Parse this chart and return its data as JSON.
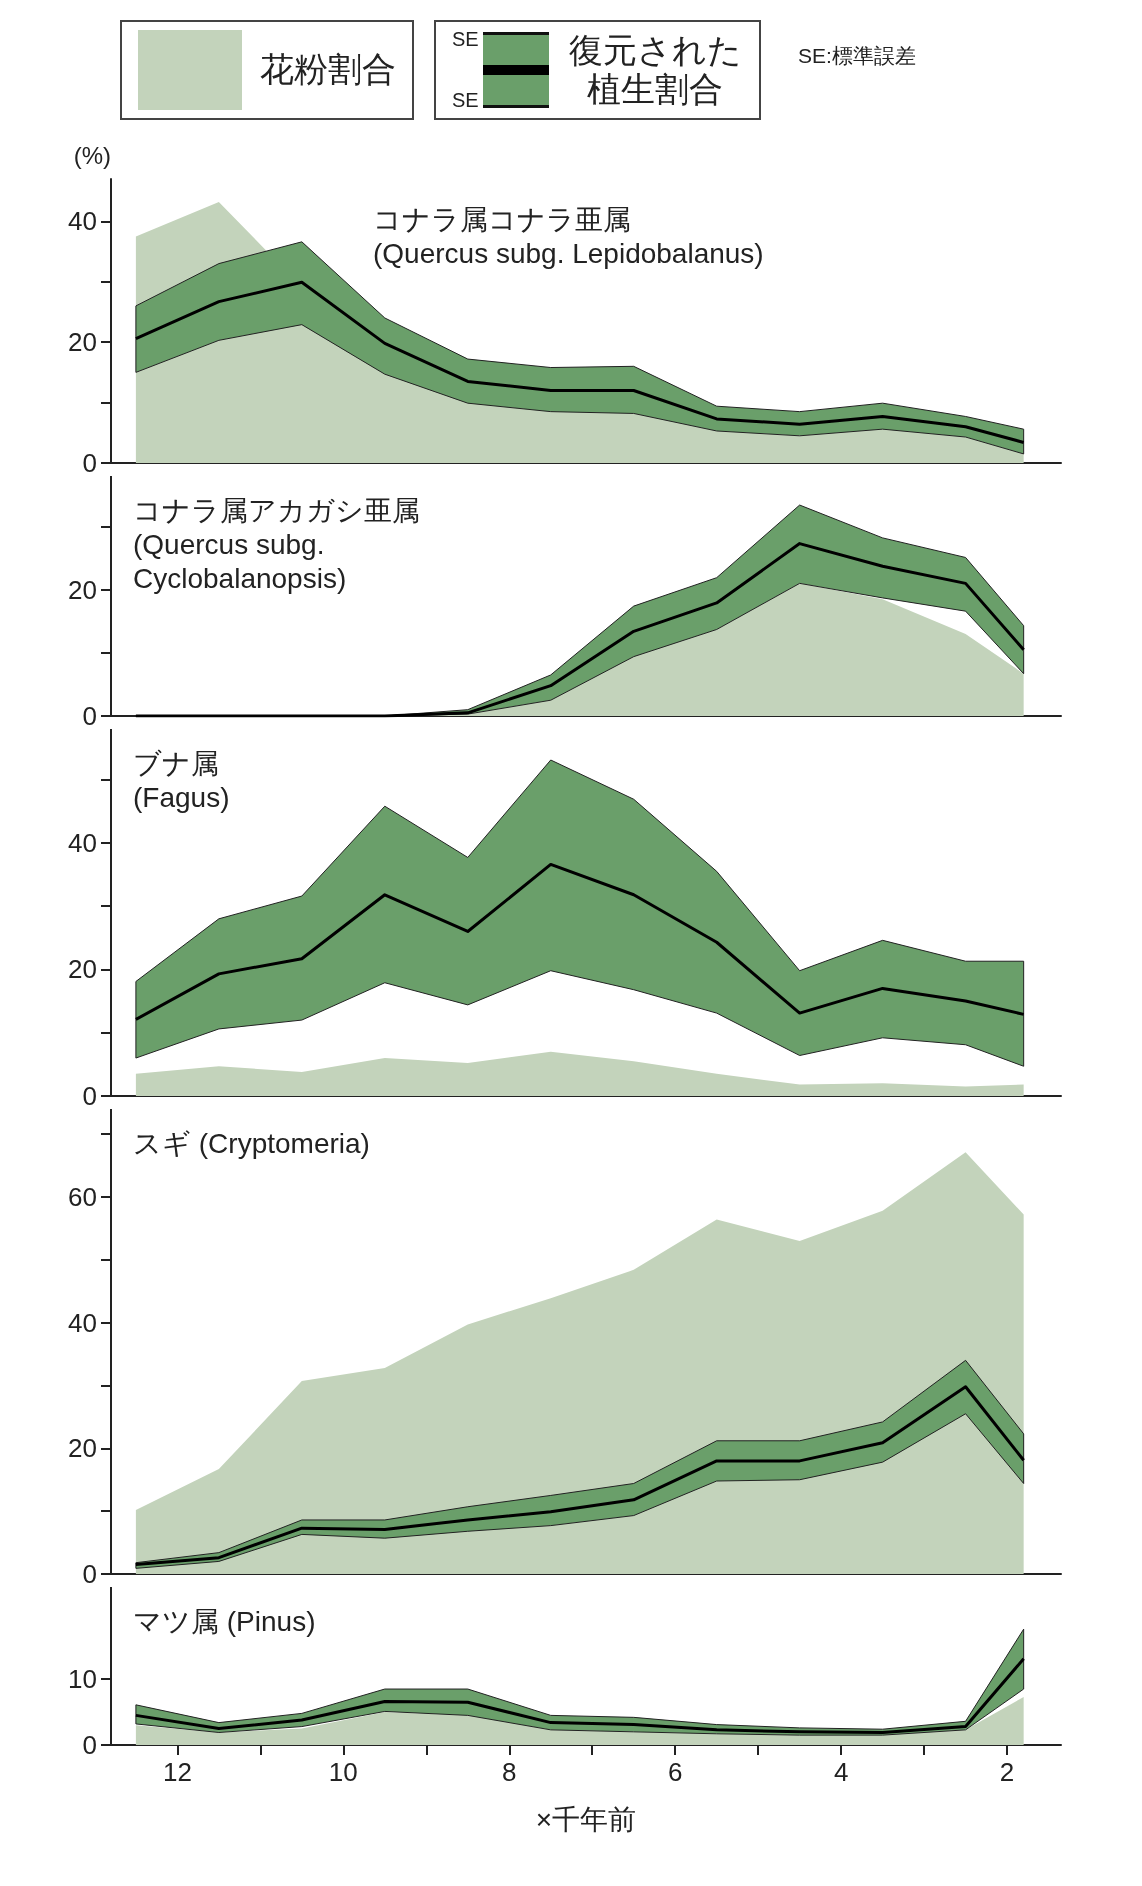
{
  "chart_data": [
    {
      "type": "area",
      "title": "コナラ属コナラ亜属\n(Quercus subg. Lepidobalanus)",
      "ylabel": "(%)",
      "legend": "top",
      "annotations": [
        "SE:標準誤差",
        "SE",
        "SE"
      ],
      "tick_labels": "y",
      "xlim": [
        12.8,
        1.35
      ],
      "ylim": [
        0,
        47
      ],
      "yticks": [
        0,
        {
          "value": 10,
          "label": null
        },
        20,
        {
          "value": 30,
          "label": null
        },
        40
      ],
      "x": [
        12.5,
        11.5,
        10.5,
        9.5,
        8.5,
        7.5,
        6.5,
        5.5,
        4.5,
        3.5,
        2.5,
        1.8
      ],
      "series": [
        {
          "name": "花粉割合",
          "color": "#c3d3bb",
          "values": [
            37.5,
            43.2,
            null,
            15,
            10,
            8.5,
            8.2,
            5.3,
            4.5,
            5.6,
            4.3,
            1.5
          ]
        },
        {
          "name": "復元された植生割合",
          "type": "line",
          "color": "#000000",
          "values": [
            20.6,
            26.7,
            29.9,
            19.8,
            13.5,
            12,
            12,
            7.3,
            6.4,
            7.7,
            6,
            3.4
          ],
          "lower": [
            15,
            20.3,
            22.9,
            14.7,
            9.9,
            8.5,
            8.2,
            5.3,
            4.5,
            5.6,
            4.3,
            1.5
          ],
          "upper": [
            26,
            33,
            36.6,
            24,
            17.2,
            15.8,
            16,
            9.4,
            8.5,
            9.9,
            7.7,
            5.6
          ]
        }
      ]
    },
    {
      "type": "area",
      "title": "コナラ属アカガシ亜属\n(Quercus subg.\nCyclobalanopsis)",
      "tick_labels": "y",
      "xlim": [
        12.8,
        1.35
      ],
      "ylim": [
        0,
        38
      ],
      "yticks": [
        0,
        {
          "value": 10,
          "label": null
        },
        20,
        {
          "value": 30,
          "label": null
        }
      ],
      "x": [
        12.5,
        11.5,
        10.5,
        9.5,
        8.5,
        7.5,
        6.5,
        5.5,
        4.5,
        3.5,
        2.5,
        1.8
      ],
      "series": [
        {
          "color": "#c3d3bb",
          "values": [
            0,
            0,
            0,
            0,
            0.3,
            2.5,
            9.4,
            13.7,
            21,
            18.5,
            13,
            6.7
          ]
        },
        {
          "type": "line",
          "color": "#000000",
          "values": [
            0,
            0,
            0,
            0,
            0.5,
            4.8,
            13.4,
            17.9,
            27.3,
            23.7,
            21,
            10.5
          ],
          "lower": [
            0,
            0,
            0,
            0,
            0.3,
            2.5,
            9.4,
            13.7,
            21,
            18.7,
            16.6,
            6.7
          ],
          "upper": [
            0,
            0,
            0,
            0,
            1,
            6.5,
            17.4,
            21.9,
            33.4,
            28.2,
            25.1,
            14.3
          ]
        }
      ]
    },
    {
      "type": "area",
      "title": "ブナ属\n(Fagus)",
      "tick_labels": "y",
      "xlim": [
        12.8,
        1.35
      ],
      "ylim": [
        0,
        58
      ],
      "yticks": [
        0,
        {
          "value": 10,
          "label": null
        },
        20,
        {
          "value": 30,
          "label": null
        },
        40,
        {
          "value": 50,
          "label": null
        }
      ],
      "x": [
        12.5,
        11.5,
        10.5,
        9.5,
        8.5,
        7.5,
        6.5,
        5.5,
        4.5,
        3.5,
        2.5,
        1.8
      ],
      "series": [
        {
          "color": "#c3d3bb",
          "values": [
            3.5,
            4.7,
            3.8,
            6,
            5.2,
            7,
            5.5,
            3.5,
            1.8,
            2,
            1.5,
            1.8
          ]
        },
        {
          "type": "line",
          "color": "#000000",
          "values": [
            12.1,
            19.3,
            21.7,
            31.8,
            26,
            36.6,
            31.8,
            24.3,
            13.1,
            17,
            15,
            12.9
          ],
          "lower": [
            6,
            10.6,
            12,
            17.9,
            14.4,
            19.8,
            16.8,
            13.1,
            6.4,
            9.2,
            8.1,
            4.7
          ],
          "upper": [
            18.1,
            28,
            31.6,
            45.8,
            37.7,
            53.1,
            46.9,
            35.5,
            19.8,
            24.6,
            21.3,
            21.3
          ]
        }
      ]
    },
    {
      "type": "area",
      "title": "スギ (Cryptomeria)",
      "tick_labels": "y",
      "xlim": [
        12.8,
        1.35
      ],
      "ylim": [
        0,
        74
      ],
      "yticks": [
        0,
        {
          "value": 10,
          "label": null
        },
        20,
        {
          "value": 30,
          "label": null
        },
        40,
        {
          "value": 50,
          "label": null
        },
        60,
        {
          "value": 70,
          "label": null
        }
      ],
      "x": [
        12.5,
        11.5,
        10.5,
        9.5,
        8.5,
        7.5,
        6.5,
        5.5,
        4.5,
        3.5,
        2.5,
        1.8
      ],
      "series": [
        {
          "color": "#c3d3bb",
          "values": [
            10.2,
            16.7,
            30.7,
            32.8,
            39.7,
            43.9,
            48.4,
            56.4,
            53,
            57.8,
            67.1,
            57.2
          ]
        },
        {
          "type": "line",
          "color": "#000000",
          "values": [
            1.5,
            2.6,
            7.3,
            7.1,
            8.6,
            9.9,
            11.8,
            18,
            18,
            20.9,
            29.8,
            18.1
          ],
          "lower": [
            0.9,
            2,
            6.3,
            5.7,
            6.8,
            7.7,
            9.3,
            14.8,
            15,
            17.8,
            25.5,
            14.4
          ],
          "upper": [
            1.8,
            3.4,
            8.6,
            8.6,
            10.7,
            12.5,
            14.4,
            21.2,
            21.2,
            24.2,
            34,
            22.3
          ]
        }
      ]
    },
    {
      "type": "area",
      "title": "マツ属 (Pinus)",
      "xlabel": "×千年前",
      "xlim": [
        12.8,
        1.35
      ],
      "ylim": [
        0,
        24
      ],
      "yticks": [
        0,
        10
      ],
      "xticks": [
        12,
        {
          "value": 11,
          "label": null
        },
        10,
        {
          "value": 9,
          "label": null
        },
        8,
        {
          "value": 7,
          "label": null
        },
        6,
        {
          "value": 5,
          "label": null
        },
        4,
        {
          "value": 3,
          "label": null
        },
        2
      ],
      "x": [
        12.5,
        11.5,
        10.5,
        9.5,
        8.5,
        7.5,
        6.5,
        5.5,
        4.5,
        3.5,
        2.5,
        1.8
      ],
      "series": [
        {
          "color": "#c3d3bb",
          "values": [
            3,
            1.9,
            2.5,
            5,
            4.5,
            2.3,
            2,
            1.7,
            1.5,
            1.5,
            2.3,
            7.3
          ]
        },
        {
          "type": "line",
          "color": "#000000",
          "values": [
            4.5,
            2.5,
            3.8,
            6.6,
            6.5,
            3.4,
            3.1,
            2.3,
            2,
            1.9,
            2.8,
            13.1
          ],
          "lower": [
            3.2,
            1.9,
            2.8,
            5.1,
            4.5,
            2.3,
            2,
            1.7,
            1.5,
            1.5,
            2.3,
            8.5
          ],
          "upper": [
            6.1,
            3.4,
            4.8,
            8.5,
            8.5,
            4.5,
            4.2,
            3.1,
            2.6,
            2.4,
            3.6,
            17.6
          ]
        }
      ]
    }
  ]
}
